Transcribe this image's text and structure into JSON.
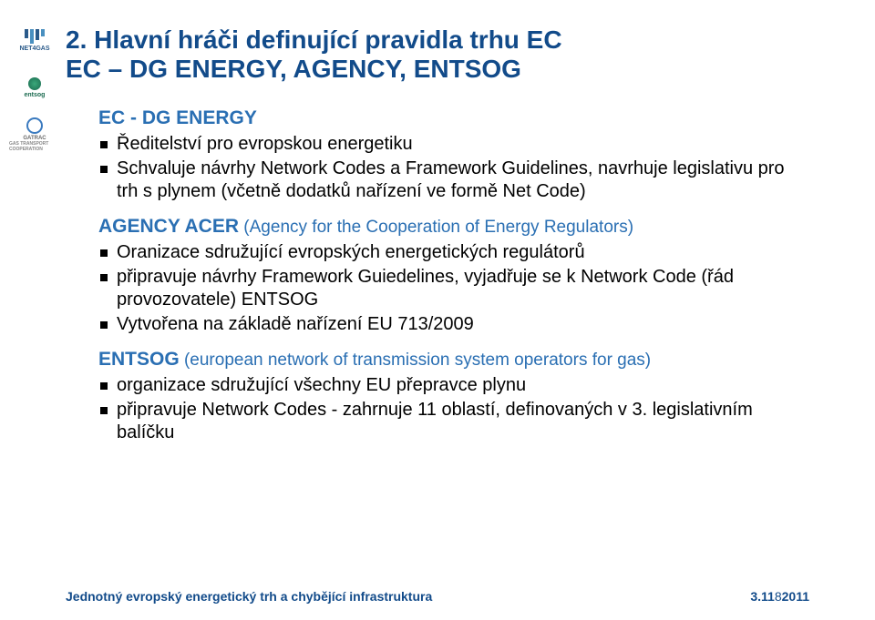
{
  "colors": {
    "title": "#124b8a",
    "heading_blue": "#2a6fb3",
    "body_text": "#000000",
    "footer_text": "#124b8a",
    "background": "#ffffff"
  },
  "fonts": {
    "title_size_pt": 28,
    "heading_size_pt": 21,
    "heading_sub_size_pt": 19,
    "bullet_size_pt": 20,
    "footer_size_pt": 14
  },
  "title_line1": "2. Hlavní hráči definující pravidla trhu EC",
  "title_line2": "EC – DG ENERGY, AGENCY, ENTSOG",
  "sections": [
    {
      "head": "EC - DG ENERGY",
      "sub": "",
      "bullets": [
        "Ředitelství pro evropskou energetiku",
        "Schvaluje návrhy Network Codes a Framework Guidelines, navrhuje legislativu pro trh s plynem (včetně dodatků nařízení ve formě Net Code)"
      ]
    },
    {
      "head": "AGENCY ACER",
      "sub": "  (Agency for the Cooperation of Energy Regulators)",
      "bullets": [
        "Oranizace sdružující evropských energetických regulátorů",
        "připravuje návrhy Framework Guiedelines, vyjadřuje se k Network Code (řád provozovatele) ENTSOG",
        "Vytvořena na základě nařízení EU 713/2009"
      ]
    },
    {
      "head": "ENTSOG",
      "sub": " (european network of transmission system operators for gas)",
      "bullets": [
        "organizace sdružující všechny EU přepravce plynu",
        "připravuje Network Codes - zahrnuje 11 oblastí, definovaných v 3. legislativním balíčku"
      ]
    }
  ],
  "footer_left": "Jednotný evropský energetický trh a chybějící infrastruktura",
  "footer_page_prefix": "3.11",
  "footer_page": "8",
  "footer_year": "2011",
  "logos": [
    "NET4GAS",
    "entsog",
    "GATRAC"
  ]
}
